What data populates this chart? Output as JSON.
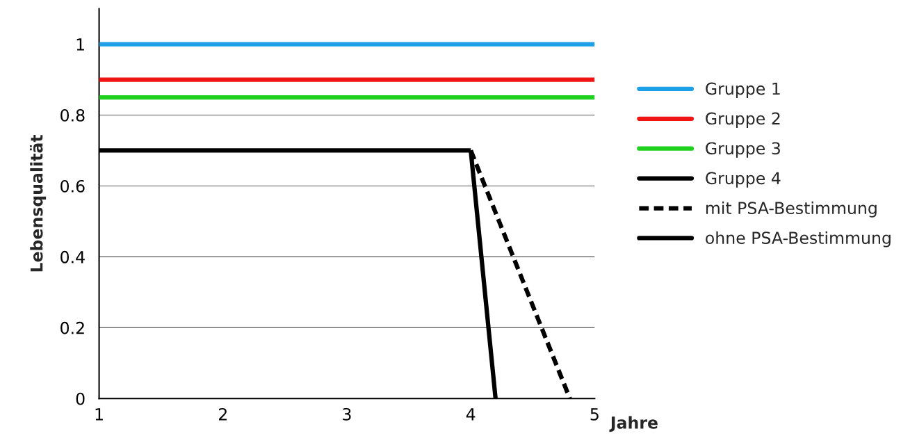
{
  "chart_data": {
    "type": "line",
    "ylabel": "Lebensqualität",
    "xlabel": "Jahre",
    "xlim": [
      1,
      5
    ],
    "xticks": [
      1,
      2,
      3,
      4,
      5
    ],
    "ylim": [
      0,
      1.1
    ],
    "yticks": [
      0,
      0.2,
      0.4,
      0.6,
      0.8,
      1
    ],
    "grid": "y",
    "legend": "right",
    "marker": "none",
    "series": [
      {
        "name": "Gruppe 1",
        "color": "#1ea0e6",
        "x": [
          1,
          5
        ],
        "values": [
          1,
          1
        ],
        "line_style": "solid"
      },
      {
        "name": "Gruppe 2",
        "color": "#f01414",
        "x": [
          1,
          5
        ],
        "values": [
          0.9,
          0.9
        ],
        "line_style": "solid"
      },
      {
        "name": "Gruppe 3",
        "color": "#1ed21e",
        "x": [
          1,
          5
        ],
        "values": [
          0.85,
          0.85
        ],
        "line_style": "solid"
      },
      {
        "name": "Gruppe 4",
        "color": "#000000",
        "x": [
          1,
          4
        ],
        "values": [
          0.7,
          0.7
        ],
        "line_style": "solid"
      },
      {
        "name": "mit PSA-Bestimmung",
        "color": "#000000",
        "x": [
          4,
          4.8
        ],
        "values": [
          0.7,
          0
        ],
        "line_style": "dashed"
      },
      {
        "name": "ohne PSA-Bestimmung",
        "color": "#000000",
        "x": [
          4,
          4.2
        ],
        "values": [
          0.7,
          0
        ],
        "line_style": "solid"
      }
    ]
  }
}
